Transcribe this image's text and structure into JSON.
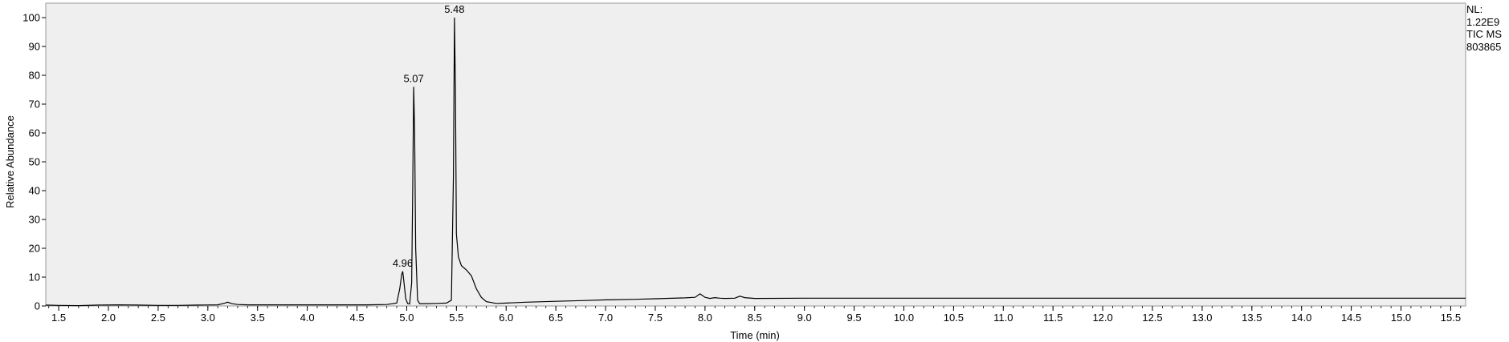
{
  "info": {
    "nl_label": "NL:",
    "nl_value": "1.22E9",
    "trace": "TIC  MS",
    "sample": "803865"
  },
  "chart_data": {
    "type": "line",
    "xlabel": "Time (min)",
    "ylabel": "Relative Abundance",
    "xlim": [
      1.37,
      15.65
    ],
    "ylim": [
      0,
      100
    ],
    "x_ticks": [
      "1.5",
      "2.0",
      "2.5",
      "3.0",
      "3.5",
      "4.0",
      "4.5",
      "5.0",
      "5.5",
      "6.0",
      "6.5",
      "7.0",
      "7.5",
      "8.0",
      "8.5",
      "9.0",
      "9.5",
      "10.0",
      "10.5",
      "11.0",
      "11.5",
      "12.0",
      "12.5",
      "13.0",
      "13.5",
      "14.0",
      "14.5",
      "15.0",
      "15.5"
    ],
    "y_ticks": [
      "0",
      "10",
      "20",
      "30",
      "40",
      "50",
      "60",
      "70",
      "80",
      "90",
      "100"
    ],
    "background": "#efefef",
    "line_color": "#000000",
    "peak_labels": [
      {
        "x": 4.96,
        "y": 12,
        "label": "4.96"
      },
      {
        "x": 5.07,
        "y": 76,
        "label": "5.07"
      },
      {
        "x": 5.48,
        "y": 100,
        "label": "5.48"
      }
    ],
    "series": [
      {
        "x": [
          1.37,
          1.5,
          1.7,
          1.9,
          2.1,
          2.3,
          2.5,
          2.7,
          2.9,
          3.1,
          3.17,
          3.2,
          3.24,
          3.3,
          3.4,
          3.6,
          3.8,
          4.0,
          4.2,
          4.4,
          4.6,
          4.8,
          4.9,
          4.93,
          4.95,
          4.96,
          4.97,
          4.99,
          5.01,
          5.03,
          5.05,
          5.06,
          5.07,
          5.08,
          5.09,
          5.11,
          5.13,
          5.2,
          5.3,
          5.4,
          5.45,
          5.47,
          5.48,
          5.49,
          5.5,
          5.52,
          5.55,
          5.6,
          5.65,
          5.7,
          5.75,
          5.8,
          5.9,
          6.0,
          6.2,
          6.5,
          6.8,
          7.0,
          7.3,
          7.5,
          7.8,
          7.9,
          7.95,
          8.0,
          8.05,
          8.1,
          8.15,
          8.2,
          8.3,
          8.35,
          8.4,
          8.5,
          9.0,
          10.0,
          11.0,
          12.0,
          13.0,
          14.0,
          15.0,
          15.65
        ],
        "y": [
          0.3,
          0.2,
          0.1,
          0.3,
          0.4,
          0.3,
          0.2,
          0.2,
          0.3,
          0.4,
          1.0,
          1.3,
          0.8,
          0.5,
          0.4,
          0.4,
          0.4,
          0.4,
          0.4,
          0.4,
          0.4,
          0.5,
          1.0,
          6.0,
          11.0,
          12.0,
          9.0,
          2.5,
          0.8,
          0.7,
          8.0,
          40.0,
          76.0,
          60.0,
          20.0,
          2.0,
          0.8,
          0.8,
          0.9,
          1.0,
          2.0,
          45.0,
          100.0,
          75.0,
          25.0,
          17.0,
          14.0,
          12.5,
          10.5,
          6.0,
          3.0,
          1.5,
          0.9,
          1.0,
          1.3,
          1.6,
          1.9,
          2.1,
          2.3,
          2.5,
          2.8,
          3.0,
          4.2,
          3.0,
          2.6,
          2.9,
          2.7,
          2.6,
          2.7,
          3.4,
          2.9,
          2.6,
          2.7,
          2.7,
          2.7,
          2.7,
          2.7,
          2.7,
          2.7,
          2.7
        ]
      }
    ]
  }
}
